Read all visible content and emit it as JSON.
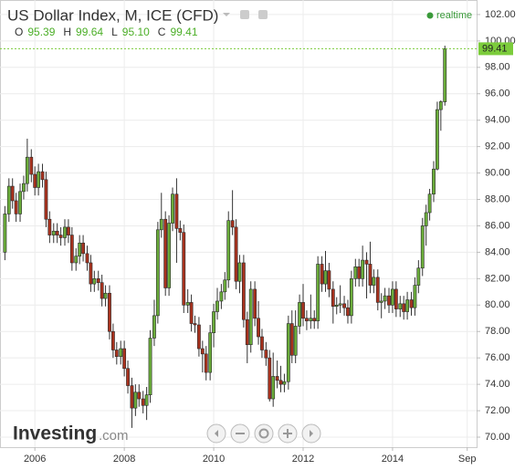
{
  "chart_data": {
    "type": "candlestick",
    "title": "US Dollar Index, M, ICE (CFD)",
    "ohlc_header": [
      {
        "label": "O",
        "value": "95.39"
      },
      {
        "label": "H",
        "value": "99.64"
      },
      {
        "label": "L",
        "value": "95.10"
      },
      {
        "label": "C",
        "value": "99.41"
      }
    ],
    "status": "realtime",
    "brand": "Investing",
    "brand_suffix": ".com",
    "up_color": "#6aac3a",
    "down_color": "#a8321e",
    "last_price_color": "#7ccc3c",
    "grid": true,
    "xlim": [
      2005.22,
      2015.88
    ],
    "xticks": [
      2006,
      2008,
      2010,
      2012,
      2014,
      {
        "value": 2015.67,
        "label": "Sep"
      }
    ],
    "ylim": [
      69.24,
      103.1
    ],
    "yticks": [
      {
        "value": 70,
        "label": "70.00"
      },
      {
        "value": 72,
        "label": "72.00"
      },
      {
        "value": 74,
        "label": "74.00"
      },
      {
        "value": 76,
        "label": "76.00"
      },
      {
        "value": 78,
        "label": "78.00"
      },
      {
        "value": 80,
        "label": "80.00"
      },
      {
        "value": 82,
        "label": "82.00"
      },
      {
        "value": 84,
        "label": "84.00"
      },
      {
        "value": 86,
        "label": "86.00"
      },
      {
        "value": 88,
        "label": "88.00"
      },
      {
        "value": 90,
        "label": "90.00"
      },
      {
        "value": 92,
        "label": "92.00"
      },
      {
        "value": 94,
        "label": "94.00"
      },
      {
        "value": 96,
        "label": "96.00"
      },
      {
        "value": 98,
        "label": "98.00"
      },
      {
        "value": 100,
        "label": "100.00"
      },
      {
        "value": 102,
        "label": "102.00"
      }
    ],
    "x": [
      2005.33,
      2005.42,
      2005.5,
      2005.58,
      2005.67,
      2005.75,
      2005.83,
      2005.92,
      2006.0,
      2006.08,
      2006.17,
      2006.25,
      2006.33,
      2006.42,
      2006.5,
      2006.58,
      2006.67,
      2006.75,
      2006.83,
      2006.92,
      2007.0,
      2007.08,
      2007.17,
      2007.25,
      2007.33,
      2007.42,
      2007.5,
      2007.58,
      2007.67,
      2007.75,
      2007.83,
      2007.92,
      2008.0,
      2008.08,
      2008.17,
      2008.25,
      2008.33,
      2008.42,
      2008.5,
      2008.58,
      2008.67,
      2008.75,
      2008.83,
      2008.92,
      2009.0,
      2009.08,
      2009.17,
      2009.25,
      2009.33,
      2009.42,
      2009.5,
      2009.58,
      2009.67,
      2009.75,
      2009.83,
      2009.92,
      2010.0,
      2010.08,
      2010.17,
      2010.25,
      2010.33,
      2010.42,
      2010.5,
      2010.58,
      2010.67,
      2010.75,
      2010.83,
      2010.92,
      2011.0,
      2011.08,
      2011.17,
      2011.25,
      2011.33,
      2011.42,
      2011.5,
      2011.58,
      2011.67,
      2011.75,
      2011.83,
      2011.92,
      2012.0,
      2012.08,
      2012.17,
      2012.25,
      2012.33,
      2012.42,
      2012.5,
      2012.58,
      2012.67,
      2012.75,
      2012.83,
      2012.92,
      2013.0,
      2013.08,
      2013.17,
      2013.25,
      2013.33,
      2013.42,
      2013.5,
      2013.58,
      2013.67,
      2013.75,
      2013.83,
      2013.92,
      2014.0,
      2014.08,
      2014.17,
      2014.25,
      2014.33,
      2014.42,
      2014.5,
      2014.58,
      2014.67,
      2014.75,
      2014.83,
      2014.92,
      2015.0,
      2015.08,
      2015.17
    ],
    "open": [
      84.0,
      86.9,
      89.0,
      87.9,
      86.9,
      88.6,
      89.2,
      91.2,
      89.9,
      88.9,
      90.1,
      89.5,
      86.5,
      85.3,
      85.6,
      85.3,
      85.1,
      85.9,
      85.3,
      83.2,
      83.7,
      84.7,
      83.9,
      83.2,
      81.6,
      82.0,
      81.7,
      80.5,
      80.9,
      78.0,
      76.6,
      76.1,
      76.7,
      75.2,
      73.9,
      72.2,
      73.4,
      72.9,
      72.4,
      73.2,
      77.5,
      79.2,
      85.7,
      86.5,
      81.3,
      86.2,
      88.4,
      85.8,
      85.5,
      80.0,
      80.2,
      78.6,
      78.5,
      76.7,
      76.3,
      74.9,
      77.9,
      79.5,
      80.3,
      81.0,
      81.9,
      86.4,
      85.9,
      81.8,
      83.2,
      78.9,
      77.0,
      81.2,
      79.0,
      77.6,
      76.6,
      76.0,
      72.9,
      74.6,
      74.3,
      74.0,
      74.2,
      78.6,
      76.2,
      78.4,
      80.2,
      79.0,
      78.8,
      79.0,
      78.8,
      83.1,
      81.6,
      82.6,
      81.2,
      79.9,
      80.0,
      80.1,
      79.8,
      79.2,
      82.0,
      82.9,
      82.0,
      83.4,
      83.1,
      81.5,
      82.1,
      80.2,
      80.3,
      80.7,
      80.0,
      81.2,
      79.7,
      80.1,
      79.5,
      80.4,
      79.8,
      81.5,
      82.8,
      86.0,
      87.0,
      88.4,
      90.3,
      94.8,
      95.39
    ],
    "high": [
      87.5,
      89.6,
      89.6,
      88.5,
      89.2,
      89.8,
      92.6,
      91.8,
      90.5,
      90.7,
      90.7,
      90.1,
      87.1,
      86.2,
      86.2,
      85.9,
      86.5,
      86.5,
      85.9,
      84.3,
      85.3,
      85.3,
      84.5,
      83.8,
      82.6,
      82.6,
      82.3,
      81.5,
      81.5,
      78.6,
      77.2,
      77.3,
      77.3,
      75.8,
      74.5,
      74.0,
      74.0,
      73.5,
      73.8,
      78.1,
      80.4,
      86.3,
      88.5,
      87.1,
      86.8,
      88.9,
      89.6,
      86.4,
      86.1,
      81.2,
      80.8,
      79.2,
      79.1,
      77.3,
      76.9,
      78.5,
      80.1,
      81.3,
      81.6,
      82.5,
      87.1,
      88.7,
      86.5,
      83.8,
      83.8,
      79.5,
      81.8,
      81.8,
      80.3,
      78.2,
      77.2,
      76.6,
      76.4,
      75.8,
      75.4,
      74.8,
      79.2,
      79.6,
      79.6,
      80.8,
      81.6,
      79.6,
      80.8,
      79.6,
      83.7,
      83.7,
      84.1,
      83.2,
      81.8,
      80.6,
      81.5,
      80.7,
      80.4,
      82.6,
      83.5,
      83.5,
      84.5,
      84.0,
      84.8,
      82.7,
      82.7,
      80.9,
      81.3,
      81.3,
      81.8,
      81.8,
      80.7,
      80.7,
      81.0,
      81.0,
      82.1,
      83.4,
      86.6,
      87.6,
      88.8,
      90.9,
      95.4,
      95.5,
      99.64
    ],
    "low": [
      83.4,
      86.3,
      87.3,
      86.3,
      86.3,
      88.0,
      88.6,
      89.3,
      88.3,
      88.3,
      88.9,
      85.9,
      84.7,
      84.7,
      84.7,
      84.5,
      84.5,
      84.7,
      82.6,
      82.6,
      83.1,
      83.3,
      82.6,
      81.0,
      81.0,
      81.1,
      79.9,
      79.9,
      77.4,
      76.0,
      75.5,
      75.5,
      74.6,
      73.3,
      70.7,
      71.6,
      72.3,
      71.8,
      71.3,
      72.6,
      76.9,
      78.6,
      85.1,
      80.7,
      80.7,
      85.6,
      83.2,
      84.9,
      79.4,
      79.4,
      78.0,
      77.9,
      76.1,
      74.9,
      74.3,
      74.3,
      76.8,
      78.9,
      79.7,
      80.4,
      81.3,
      85.3,
      81.2,
      80.9,
      78.3,
      75.6,
      76.4,
      78.4,
      77.0,
      76.0,
      75.4,
      72.7,
      72.3,
      73.7,
      73.4,
      73.4,
      73.6,
      75.6,
      75.6,
      77.8,
      78.4,
      78.1,
      78.2,
      78.2,
      78.2,
      81.0,
      81.0,
      80.6,
      78.6,
      79.3,
      79.4,
      79.2,
      78.6,
      78.6,
      81.4,
      81.4,
      81.4,
      80.5,
      80.9,
      80.9,
      79.6,
      79.0,
      79.7,
      79.4,
      79.4,
      79.1,
      79.1,
      78.9,
      78.9,
      79.2,
      79.2,
      80.9,
      82.2,
      84.5,
      86.4,
      87.8,
      90.2,
      93.2,
      95.1
    ],
    "close": [
      86.9,
      89.0,
      87.9,
      86.9,
      88.6,
      89.2,
      91.2,
      89.9,
      88.9,
      90.1,
      89.5,
      86.5,
      85.3,
      85.6,
      85.3,
      85.1,
      85.9,
      85.3,
      83.2,
      83.7,
      84.7,
      83.9,
      83.2,
      81.6,
      82.0,
      81.7,
      80.5,
      80.9,
      78.0,
      76.6,
      76.1,
      76.7,
      75.2,
      73.9,
      72.2,
      73.4,
      72.9,
      72.4,
      73.2,
      77.5,
      79.2,
      85.7,
      86.5,
      81.3,
      86.2,
      88.4,
      85.8,
      85.5,
      80.0,
      80.2,
      78.6,
      78.5,
      76.7,
      76.3,
      74.9,
      77.9,
      79.5,
      80.3,
      81.0,
      81.9,
      86.4,
      85.9,
      81.8,
      83.2,
      78.9,
      77.0,
      81.2,
      79.0,
      77.6,
      76.6,
      76.0,
      72.9,
      74.6,
      74.3,
      74.0,
      74.2,
      78.6,
      76.2,
      78.4,
      80.2,
      79.0,
      78.8,
      79.0,
      78.8,
      83.1,
      81.6,
      82.6,
      81.2,
      79.9,
      80.0,
      80.1,
      79.8,
      79.2,
      82.0,
      82.9,
      82.0,
      83.4,
      83.1,
      81.5,
      82.1,
      80.2,
      80.3,
      80.7,
      80.0,
      81.2,
      79.7,
      80.1,
      79.5,
      80.4,
      79.8,
      81.5,
      82.8,
      86.0,
      87.0,
      88.4,
      90.3,
      94.8,
      95.4,
      99.41
    ]
  }
}
